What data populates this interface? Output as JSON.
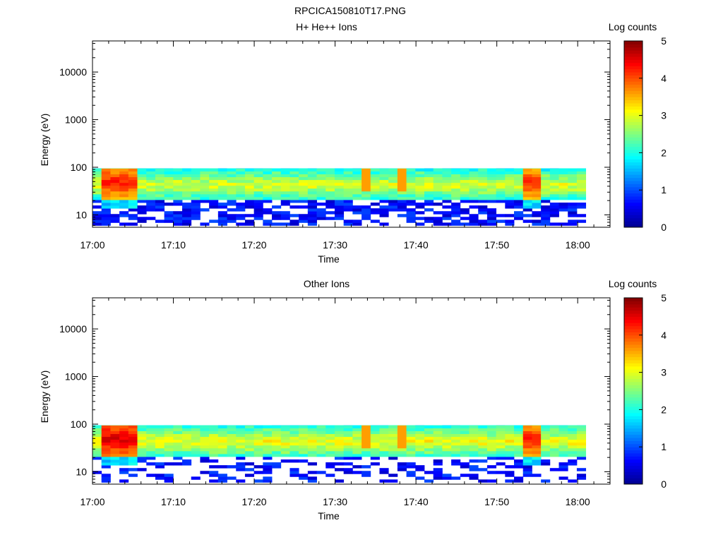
{
  "figure": {
    "title": "RPCICA150810T17.PNG"
  },
  "colormap": [
    "#00008f",
    "#0000ff",
    "#007fff",
    "#00ffff",
    "#7fff7f",
    "#ffff00",
    "#ff7f00",
    "#ff0000",
    "#7f0000"
  ],
  "chart_data": [
    {
      "type": "heatmap",
      "title": "H+ He++ Ions",
      "xlabel": "Time",
      "ylabel": "Energy (eV)",
      "x_ticks": [
        "17:00",
        "17:10",
        "17:20",
        "17:30",
        "17:40",
        "17:50",
        "18:00"
      ],
      "xlim_minutes": [
        0,
        64
      ],
      "y_scale": "log",
      "ylim": [
        5.5,
        45000
      ],
      "y_ticks": [
        10,
        100,
        1000,
        10000
      ],
      "y_tick_labels": [
        "10",
        "100",
        "1000",
        "10000"
      ],
      "colorbar": {
        "label": "Log counts",
        "range": [
          0,
          5
        ],
        "ticks": [
          "0",
          "1",
          "2",
          "3",
          "4",
          "5"
        ]
      },
      "data_extent": {
        "time_minutes": [
          0,
          61
        ],
        "energy_eV": [
          6,
          95
        ]
      },
      "features": {
        "intense_bursts": [
          {
            "start_min": 1,
            "end_min": 5.5,
            "peak_log": 4.3
          },
          {
            "start_min": 53,
            "end_min": 56,
            "peak_log": 4.2
          }
        ],
        "spikes_min": [
          34,
          38
        ],
        "band_peak_log": 3.0
      }
    },
    {
      "type": "heatmap",
      "title": "Other Ions",
      "xlabel": "Time",
      "ylabel": "Energy (eV)",
      "x_ticks": [
        "17:00",
        "17:10",
        "17:20",
        "17:30",
        "17:40",
        "17:50",
        "18:00"
      ],
      "xlim_minutes": [
        0,
        64
      ],
      "y_scale": "log",
      "ylim": [
        5.5,
        45000
      ],
      "y_ticks": [
        10,
        100,
        1000,
        10000
      ],
      "y_tick_labels": [
        "10",
        "100",
        "1000",
        "10000"
      ],
      "colorbar": {
        "label": "Log counts",
        "range": [
          0,
          5
        ],
        "ticks": [
          "0",
          "1",
          "2",
          "3",
          "4",
          "5"
        ]
      },
      "data_extent": {
        "time_minutes": [
          0,
          61
        ],
        "energy_eV": [
          6,
          95
        ]
      },
      "features": {
        "intense_bursts": [
          {
            "start_min": 1,
            "end_min": 5.5,
            "peak_log": 4.6
          },
          {
            "start_min": 53,
            "end_min": 56,
            "peak_log": 4.3
          }
        ],
        "spikes_min": [
          34,
          38
        ],
        "band_peak_log": 3.1
      }
    }
  ]
}
